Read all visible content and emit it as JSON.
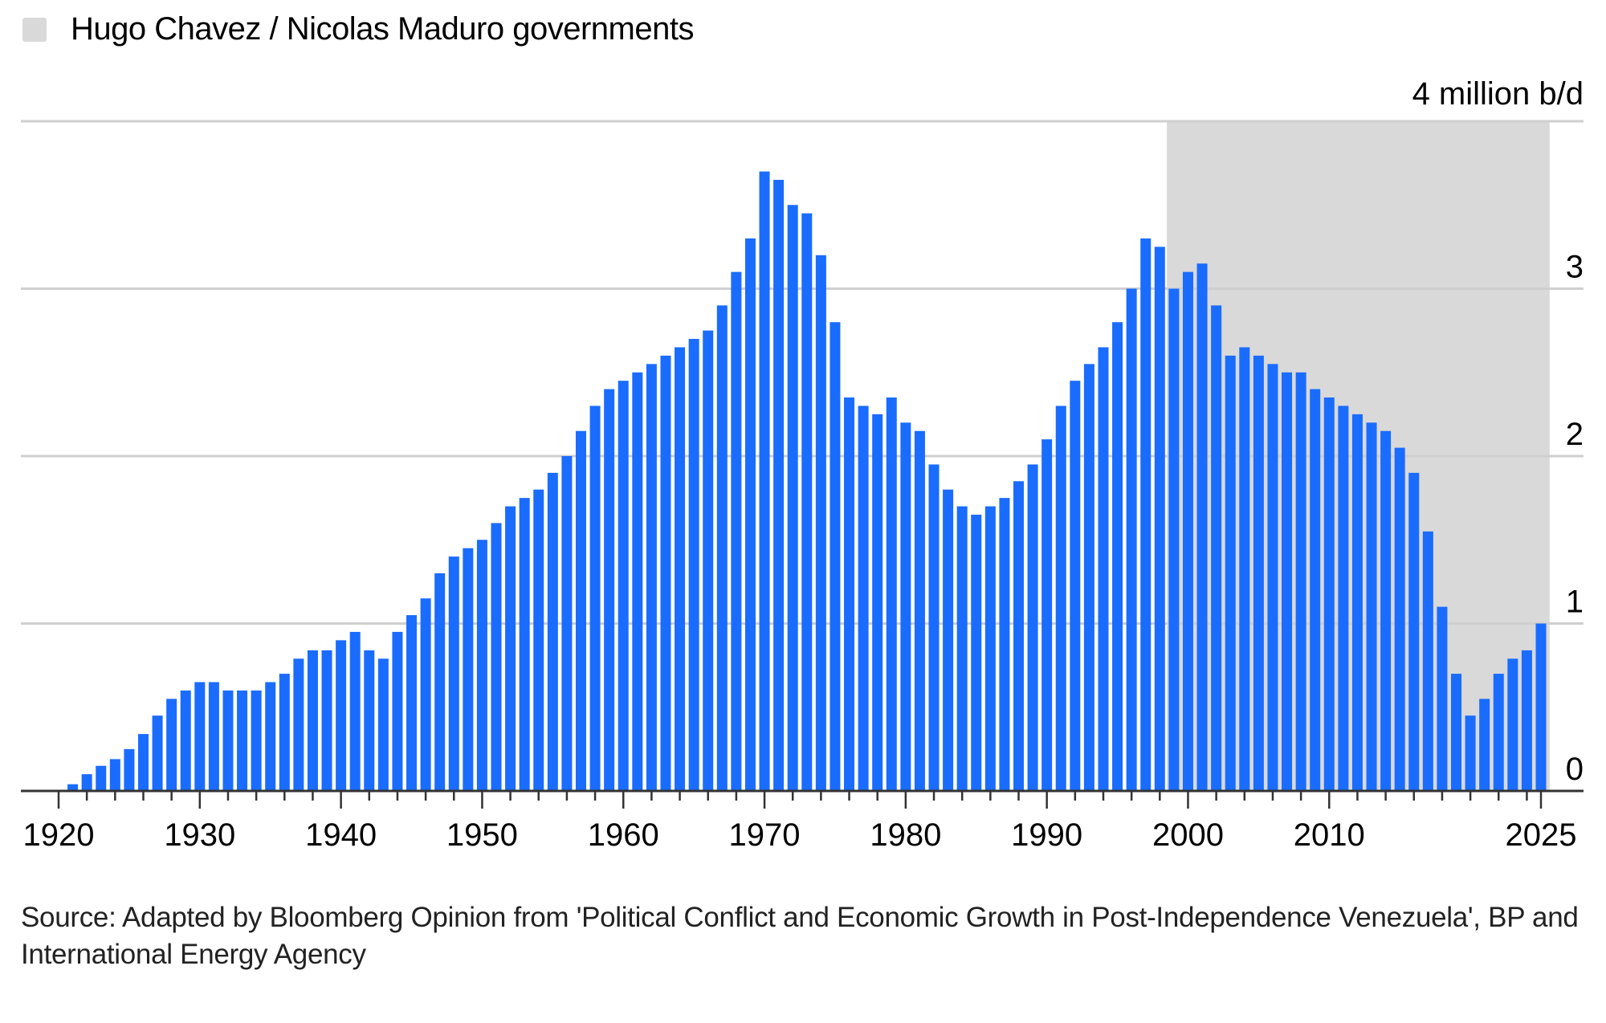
{
  "legend": {
    "label": "Hugo Chavez / Nicolas Maduro governments",
    "color": "#d9d9d9"
  },
  "source": "Source: Adapted by Bloomberg Opinion from 'Political Conflict and Economic Growth in Post-Independence Venezuela', BP and International Energy Agency",
  "chart_data": {
    "type": "bar",
    "title": "",
    "xlabel": "",
    "ylabel": "",
    "unit_label": "4 million b/d",
    "bar_color": "#1a6cff",
    "grid": true,
    "ylim": [
      0,
      4
    ],
    "xlim": [
      1920,
      2025
    ],
    "yticks": [
      0,
      1,
      2,
      3
    ],
    "xticks": [
      1920,
      1930,
      1940,
      1950,
      1960,
      1970,
      1980,
      1990,
      2000,
      2010,
      2025
    ],
    "shaded_period": {
      "label": "Hugo Chavez / Nicolas Maduro governments",
      "start": 1999,
      "end": 2025
    },
    "x": [
      1921,
      1922,
      1923,
      1924,
      1925,
      1926,
      1927,
      1928,
      1929,
      1930,
      1931,
      1932,
      1933,
      1934,
      1935,
      1936,
      1937,
      1938,
      1939,
      1940,
      1941,
      1942,
      1943,
      1944,
      1945,
      1946,
      1947,
      1948,
      1949,
      1950,
      1951,
      1952,
      1953,
      1954,
      1955,
      1956,
      1957,
      1958,
      1959,
      1960,
      1961,
      1962,
      1963,
      1964,
      1965,
      1966,
      1967,
      1968,
      1969,
      1970,
      1971,
      1972,
      1973,
      1974,
      1975,
      1976,
      1977,
      1978,
      1979,
      1980,
      1981,
      1982,
      1983,
      1984,
      1985,
      1986,
      1987,
      1988,
      1989,
      1990,
      1991,
      1992,
      1993,
      1994,
      1995,
      1996,
      1997,
      1998,
      1999,
      2000,
      2001,
      2002,
      2003,
      2004,
      2005,
      2006,
      2007,
      2008,
      2009,
      2010,
      2011,
      2012,
      2013,
      2014,
      2015,
      2016,
      2017,
      2018,
      2019,
      2020,
      2021,
      2022,
      2023,
      2024,
      2025
    ],
    "values": [
      0.04,
      0.1,
      0.15,
      0.19,
      0.25,
      0.34,
      0.45,
      0.55,
      0.6,
      0.65,
      0.65,
      0.6,
      0.6,
      0.6,
      0.65,
      0.7,
      0.79,
      0.84,
      0.84,
      0.9,
      0.95,
      0.84,
      0.79,
      0.95,
      1.05,
      1.15,
      1.3,
      1.4,
      1.45,
      1.5,
      1.6,
      1.7,
      1.75,
      1.8,
      1.9,
      2.0,
      2.15,
      2.3,
      2.4,
      2.45,
      2.5,
      2.55,
      2.6,
      2.65,
      2.7,
      2.75,
      2.9,
      3.1,
      3.3,
      3.7,
      3.65,
      3.5,
      3.45,
      3.2,
      2.8,
      2.35,
      2.3,
      2.25,
      2.35,
      2.2,
      2.15,
      1.95,
      1.8,
      1.7,
      1.65,
      1.7,
      1.75,
      1.85,
      1.95,
      2.1,
      2.3,
      2.45,
      2.55,
      2.65,
      2.8,
      3.0,
      3.3,
      3.25,
      3.0,
      3.1,
      3.15,
      2.9,
      2.6,
      2.65,
      2.6,
      2.55,
      2.5,
      2.5,
      2.4,
      2.35,
      2.3,
      2.25,
      2.2,
      2.15,
      2.05,
      1.9,
      1.55,
      1.1,
      0.7,
      0.45,
      0.55,
      0.7,
      0.79,
      0.84,
      1.0
    ]
  }
}
